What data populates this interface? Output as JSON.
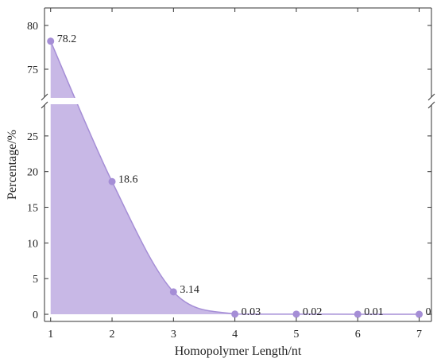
{
  "chart_data": {
    "type": "area",
    "x": [
      1,
      2,
      3,
      4,
      5,
      6,
      7
    ],
    "series": [
      {
        "values": [
          78.2,
          18.6,
          3.14,
          0.03,
          0.02,
          0.01,
          0
        ],
        "data_labels": [
          "78.2",
          "18.6",
          "3.14",
          "0.03",
          "0.02",
          "0.01",
          "0"
        ]
      }
    ],
    "xlabel": "Homopolymer Length/nt",
    "ylabel": "Percentage/%",
    "xlim": [
      0.9,
      7.2
    ],
    "ylim_lower": [
      -1,
      29
    ],
    "ylim_upper": [
      72,
      82
    ],
    "broken_y_axis": true,
    "x_ticks": [
      "1",
      "2",
      "3",
      "4",
      "5",
      "6",
      "7"
    ],
    "y_ticks_lower": [
      "0",
      "5",
      "10",
      "15",
      "20",
      "25"
    ],
    "y_ticks_upper": [
      "75",
      "80"
    ],
    "grid": false,
    "legend": "none",
    "colors": {
      "fill": "#c8b8e6",
      "line": "#a58ed6",
      "marker": "#a58ed6"
    }
  }
}
